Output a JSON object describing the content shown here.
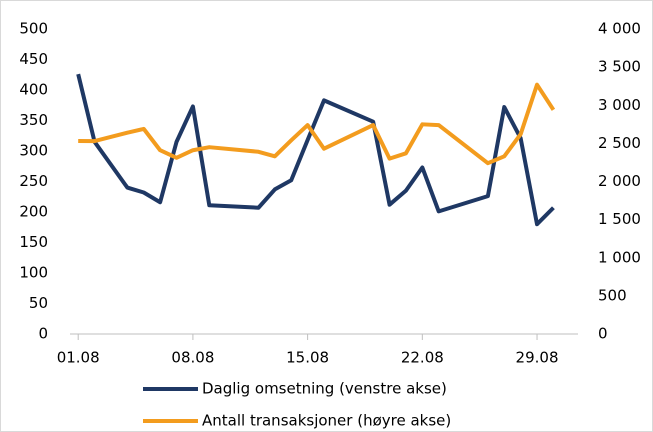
{
  "chart_data": {
    "type": "line",
    "x": [
      1,
      2,
      4,
      5,
      6,
      7,
      8,
      9,
      12,
      13,
      14,
      15,
      16,
      19,
      20,
      21,
      22,
      23,
      26,
      27,
      28,
      29,
      30
    ],
    "series": [
      {
        "name": "Daglig omsetning (venstre akse)",
        "color": "#1f3864",
        "axis": "y",
        "values": [
          426,
          315,
          240,
          232,
          216,
          315,
          373,
          211,
          207,
          237,
          252,
          318,
          383,
          348,
          212,
          235,
          273,
          201,
          226,
          372,
          321,
          180,
          207
        ]
      },
      {
        "name": "Antall transaksjoner (høyre akse)",
        "color": "#f39c1e",
        "axis": "y2",
        "values": [
          2531,
          2530,
          2640,
          2690,
          2410,
          2310,
          2410,
          2450,
          2390,
          2330,
          2540,
          2740,
          2430,
          2740,
          2300,
          2370,
          2750,
          2740,
          2240,
          2330,
          2620,
          3270,
          2940
        ]
      }
    ],
    "xlim": [
      0.5,
      31.5
    ],
    "xticks": [
      {
        "value": 1,
        "label": "01.08"
      },
      {
        "value": 8,
        "label": "08.08"
      },
      {
        "value": 15,
        "label": "15.08"
      },
      {
        "value": 22,
        "label": "22.08"
      },
      {
        "value": 29,
        "label": "29.08"
      }
    ],
    "ylim": [
      0,
      500
    ],
    "yticks": [
      0,
      50,
      100,
      150,
      200,
      250,
      300,
      350,
      400,
      450,
      500
    ],
    "y2lim": [
      0,
      4000
    ],
    "y2ticks": [
      0,
      500,
      {
        "value": 1000,
        "label": "1 000"
      },
      {
        "value": 1500,
        "label": "1 500"
      },
      {
        "value": 2000,
        "label": "2 000"
      },
      {
        "value": 2500,
        "label": "2 500"
      },
      {
        "value": 3000,
        "label": "3 000"
      },
      {
        "value": 3500,
        "label": "3 500"
      },
      {
        "value": 4000,
        "label": "4 000"
      }
    ],
    "legend": "bottom"
  }
}
